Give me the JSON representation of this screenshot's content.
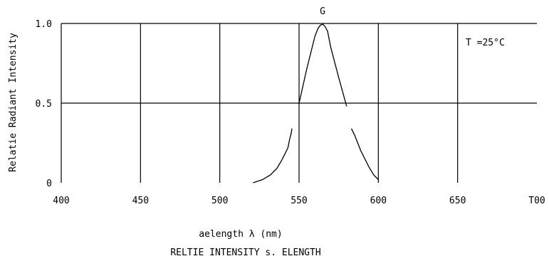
{
  "chart_data": {
    "type": "line",
    "title": "G",
    "subtitle": "RELTIE INTENSITY s. ELENGTH",
    "xlabel": "aelength λ (nm)",
    "ylabel": "Relatie Radiant Intensity",
    "annotation": "T =25°C",
    "xlim": [
      400,
      700
    ],
    "ylim": [
      0,
      1.0
    ],
    "grid": true,
    "x_ticks": [
      {
        "value": 400,
        "label": "400"
      },
      {
        "value": 450,
        "label": "450"
      },
      {
        "value": 500,
        "label": "500"
      },
      {
        "value": 550,
        "label": "550"
      },
      {
        "value": 600,
        "label": "600"
      },
      {
        "value": 650,
        "label": "650"
      },
      {
        "value": 700,
        "label": "T00"
      }
    ],
    "y_ticks": [
      {
        "value": 0,
        "label": "0"
      },
      {
        "value": 0.5,
        "label": "0.5"
      },
      {
        "value": 1.0,
        "label": "1.0"
      }
    ],
    "series": [
      {
        "x": [
          521,
          527,
          532,
          536,
          539,
          541,
          543,
          544,
          545,
          545.5
        ],
        "y": [
          0.0,
          0.02,
          0.05,
          0.09,
          0.14,
          0.18,
          0.22,
          0.27,
          0.31,
          0.34
        ]
      },
      {
        "x": [
          550,
          555,
          560,
          562,
          563.5,
          565,
          566.5,
          568,
          570,
          575,
          580
        ],
        "y": [
          0.5,
          0.72,
          0.92,
          0.97,
          0.99,
          0.995,
          0.98,
          0.95,
          0.85,
          0.66,
          0.48
        ]
      },
      {
        "x": [
          583,
          585,
          587,
          589,
          591,
          594,
          597,
          600
        ],
        "y": [
          0.34,
          0.3,
          0.25,
          0.2,
          0.16,
          0.1,
          0.05,
          0.02
        ]
      }
    ]
  }
}
